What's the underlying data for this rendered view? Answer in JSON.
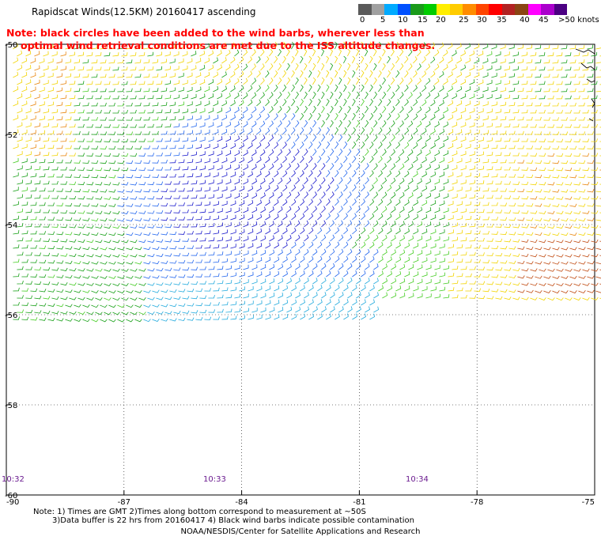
{
  "title": "Rapidscat Winds(12.5KM) 20160417 ascending",
  "note_line1": "Note: black circles have been added to the wind barbs, wherever less than",
  "note_line2": "optimal wind retrieval conditions are met due to the ISS altitude changes.",
  "colorbar": {
    "labels": [
      "0",
      "5",
      "10",
      "15",
      "20",
      "25",
      "30",
      "35",
      "40",
      "45",
      ">50 knots"
    ],
    "colors": [
      "#5a5a5a",
      "#a0a0a0",
      "#00aaff",
      "#0050ff",
      "#1a9a1a",
      "#00cc00",
      "#ffee00",
      "#ffcc00",
      "#ff8c00",
      "#ff4500",
      "#ff0000",
      "#b22222",
      "#8b4513",
      "#ff00ff",
      "#aa00cc",
      "#4b0082"
    ]
  },
  "axes": {
    "lon_labels": [
      "-90",
      "-87",
      "-84",
      "-81",
      "-78",
      "-75"
    ],
    "lat_labels": [
      "-50",
      "-52",
      "-54",
      "-56",
      "-58",
      "-60"
    ]
  },
  "times": [
    "10:32",
    "10:33",
    "10:34"
  ],
  "footnote_line1": "Note: 1) Times are GMT 2)Times along bottom correspond to measurement at ~50S",
  "footnote_line2": "3)Data buffer is 22 hrs from 20160417 4) Black wind barbs indicate possible contamination",
  "credit": "NOAA/NESDIS/Center for Satellite Applications and Research"
}
